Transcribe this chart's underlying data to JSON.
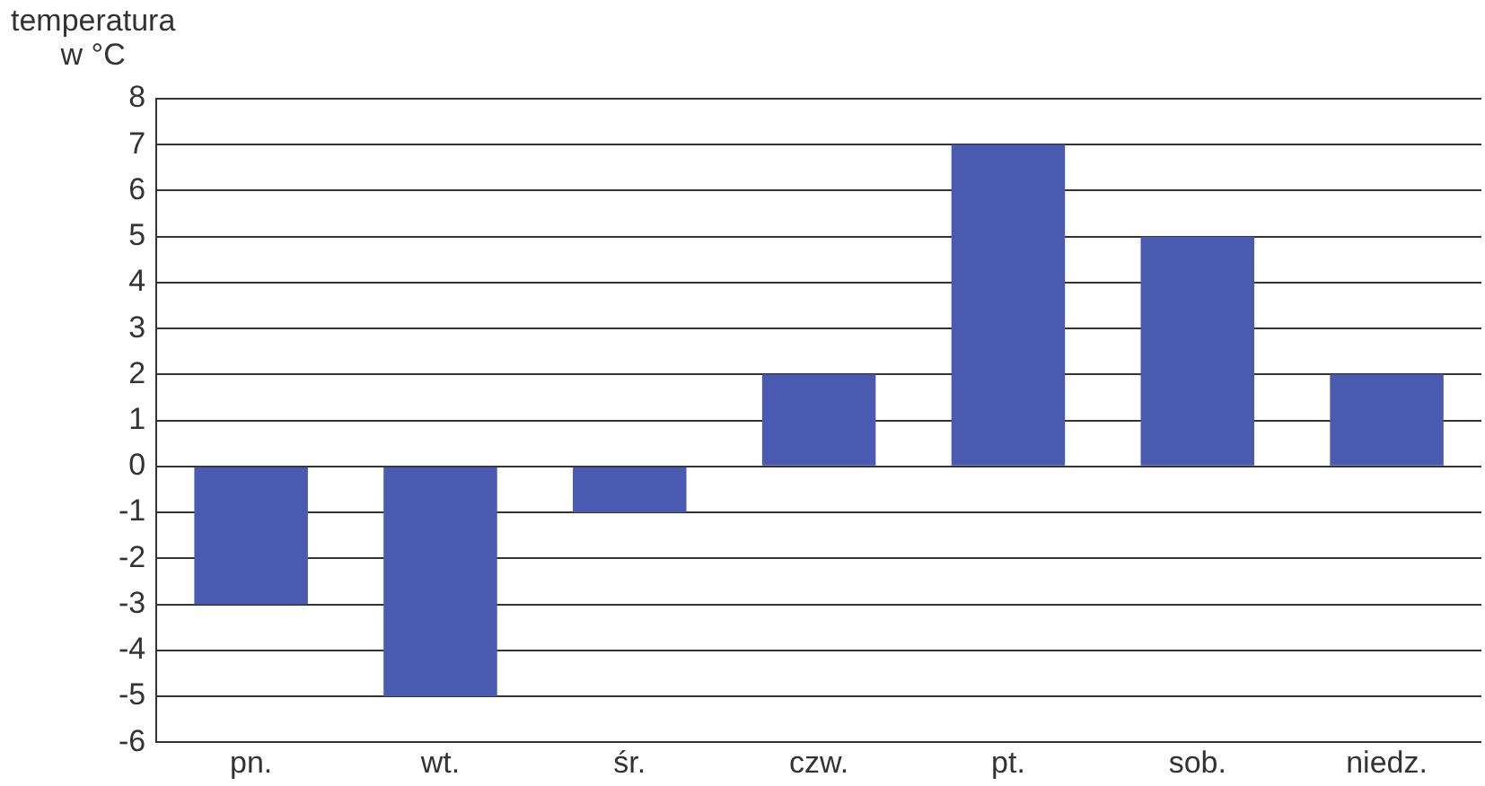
{
  "chart_data": {
    "type": "bar",
    "ylabel": "temperatura\nw °C",
    "categories": [
      "pn.",
      "wt.",
      "śr.",
      "czw.",
      "pt.",
      "sob.",
      "niedz."
    ],
    "values": [
      -3,
      -5,
      -1,
      2,
      7,
      5,
      2
    ],
    "color": "#4a5ab0",
    "ylim": [
      -6,
      8
    ],
    "yticks": [
      -6,
      -5,
      -4,
      -3,
      -2,
      -1,
      0,
      1,
      2,
      3,
      4,
      5,
      6,
      7,
      8
    ],
    "grid": "y"
  }
}
